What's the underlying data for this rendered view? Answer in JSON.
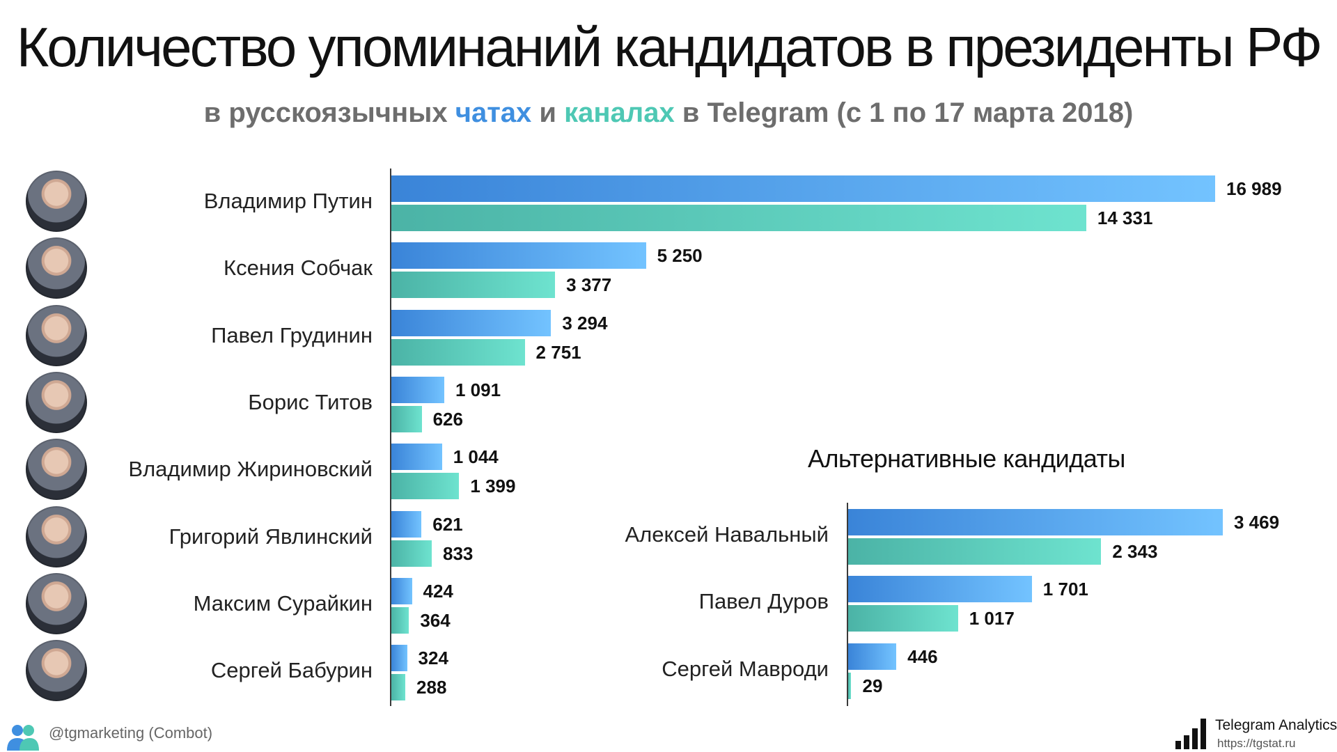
{
  "title": "Количество упоминаний кандидатов в президенты РФ",
  "subtitle": {
    "prefix": "в русскоязычных ",
    "chats": "чатах",
    "middle": " и ",
    "channels": "каналах",
    "suffix": " в Telegram (с 1 по 17 марта 2018)"
  },
  "colors": {
    "chats": "#3f8fe0",
    "channels": "#4ec8b4",
    "subtitle": "#6d6d6d"
  },
  "chart_data": [
    {
      "type": "bar",
      "orientation": "horizontal",
      "categories": [
        "Владимир Путин",
        "Ксения Собчак",
        "Павел Грудинин",
        "Борис Титов",
        "Владимир Жириновский",
        "Григорий Явлинский",
        "Максим Сурайкин",
        "Сергей Бабурин"
      ],
      "series": [
        {
          "name": "чатах",
          "values": [
            16989,
            5250,
            3294,
            1091,
            1044,
            621,
            424,
            324
          ],
          "labels": [
            "16 989",
            "5 250",
            "3 294",
            "1 091",
            "1 044",
            "621",
            "424",
            "324"
          ]
        },
        {
          "name": "каналах",
          "values": [
            14331,
            3377,
            2751,
            626,
            1399,
            833,
            364,
            288
          ],
          "labels": [
            "14 331",
            "3 377",
            "2 751",
            "626",
            "1 399",
            "833",
            "364",
            "288"
          ]
        }
      ]
    },
    {
      "type": "bar",
      "orientation": "horizontal",
      "title": "Альтернативные кандидаты",
      "categories": [
        "Алексей Навальный",
        "Павел Дуров",
        "Сергей Мавроди"
      ],
      "series": [
        {
          "name": "чатах",
          "values": [
            3469,
            1701,
            446
          ],
          "labels": [
            "3 469",
            "1 701",
            "446"
          ]
        },
        {
          "name": "каналах",
          "values": [
            2343,
            1017,
            29
          ],
          "labels": [
            "2 343",
            "1 017",
            "29"
          ]
        }
      ]
    }
  ],
  "footer": {
    "left": "@tgmarketing (Combot)",
    "brand_title": "Telegram Analytics",
    "brand_url": "https://tgstat.ru",
    "left_icon": "users-icon",
    "brand_icon": "bar-chart-icon"
  }
}
